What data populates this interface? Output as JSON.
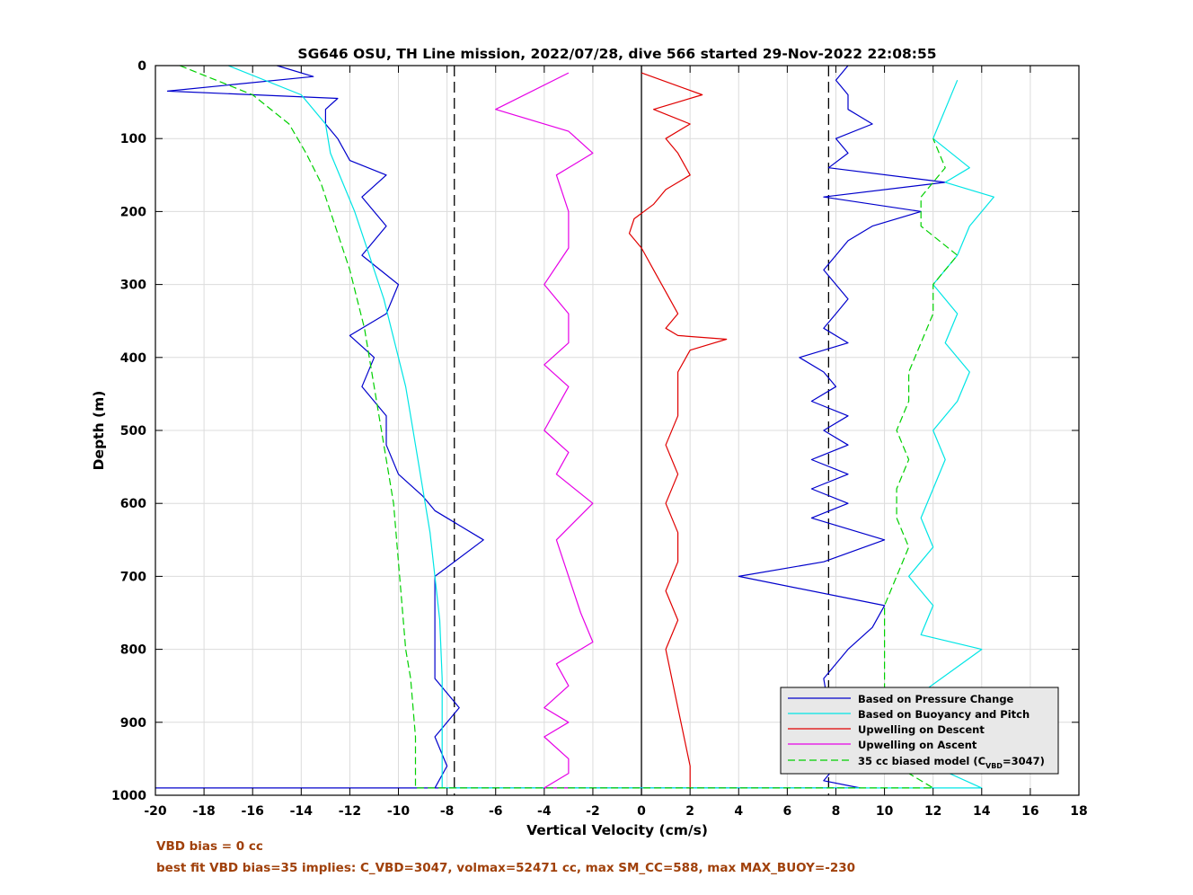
{
  "chart_data": {
    "type": "line",
    "title": "SG646 OSU, TH Line mission, 2022/07/28, dive 566 started 29-Nov-2022 22:08:55",
    "xlabel": "Vertical Velocity (cm/s)",
    "ylabel": "Depth (m)",
    "xlim": [
      -20,
      18
    ],
    "ylim": [
      0,
      1000
    ],
    "y_reversed": true,
    "grid": true,
    "legend_position": "bottom-right",
    "xticks": [
      "-20",
      "-18",
      "-16",
      "-14",
      "-12",
      "-10",
      "-8",
      "-6",
      "-4",
      "-2",
      "0",
      "2",
      "4",
      "6",
      "8",
      "10",
      "12",
      "14",
      "16",
      "18"
    ],
    "yticks": [
      "0",
      "100",
      "200",
      "300",
      "400",
      "500",
      "600",
      "700",
      "800",
      "900",
      "1000"
    ],
    "reference_lines": [
      {
        "x": -7.7,
        "style": "dashed",
        "color": "#000000"
      },
      {
        "x": 0,
        "style": "solid",
        "color": "#000000"
      },
      {
        "x": 7.7,
        "style": "dashed",
        "color": "#000000"
      }
    ],
    "series": [
      {
        "name": "Based on Pressure Change",
        "color": "#0000cc",
        "style": "solid",
        "x": [
          -15,
          -13.5,
          -19.5,
          -12.5,
          -13,
          -13,
          -12.5,
          -12,
          -10.5,
          -11.5,
          -10.5,
          -11.5,
          -10,
          -10.5,
          -12,
          -11,
          -11.5,
          -10.5,
          -10.5,
          -10,
          -9,
          -8.5,
          -6.5,
          -8.5,
          -8.5,
          -8.5,
          -7.5,
          -8.5,
          -8,
          -8.5,
          -7.5,
          -7.5,
          -7.5,
          -7.5,
          -7,
          -7.5,
          -7.7,
          -7.5,
          -7,
          -6.5,
          -6,
          -6,
          -20,
          6,
          9,
          7.5,
          8,
          7,
          7.7,
          7.5,
          8.5,
          9.5,
          10,
          4,
          7.5,
          10,
          7,
          8.5,
          7,
          8.5,
          7,
          8.5,
          7.5,
          8.5,
          7,
          8,
          7.5,
          6.5,
          8.5,
          7.5,
          8,
          8.5,
          8,
          7.5,
          8,
          8.5,
          9.5,
          11.5,
          7.5,
          12.5,
          7.7,
          8.5,
          8,
          9.5,
          8.5,
          8.5,
          8,
          8.5
        ],
        "y": [
          0,
          15,
          35,
          45,
          60,
          80,
          100,
          130,
          150,
          180,
          220,
          260,
          300,
          340,
          370,
          400,
          440,
          480,
          520,
          560,
          590,
          610,
          650,
          700,
          760,
          840,
          880,
          920,
          960,
          990,
          990,
          990,
          990,
          990,
          990,
          990,
          990,
          990,
          990,
          990,
          990,
          990,
          990,
          990,
          990,
          980,
          960,
          920,
          880,
          840,
          800,
          770,
          740,
          700,
          680,
          650,
          620,
          600,
          580,
          560,
          540,
          520,
          500,
          480,
          460,
          440,
          420,
          400,
          380,
          360,
          340,
          320,
          300,
          280,
          260,
          240,
          220,
          200,
          180,
          160,
          140,
          120,
          100,
          80,
          60,
          40,
          20,
          0
        ]
      },
      {
        "name": "Based on Buoyancy and Pitch",
        "color": "#00e5e5",
        "style": "solid",
        "x": [
          -17,
          -14,
          -13,
          -12.8,
          -12.3,
          -11.8,
          -11.4,
          -11,
          -10.6,
          -10.3,
          -10,
          -9.7,
          -9.5,
          -9.3,
          -9.1,
          -8.9,
          -8.7,
          -8.5,
          -8.3,
          -8.2,
          -8.2,
          14,
          12,
          11.5,
          11.5,
          14,
          11.5,
          12,
          11,
          12,
          11.5,
          12,
          12.5,
          12,
          13,
          13.5,
          12.5,
          13,
          12,
          13,
          13.5,
          14.5,
          12.5,
          13.5,
          12,
          12.5,
          13
        ],
        "y": [
          0,
          40,
          80,
          120,
          160,
          200,
          240,
          280,
          320,
          360,
          400,
          440,
          480,
          520,
          560,
          600,
          640,
          700,
          760,
          840,
          990,
          990,
          960,
          900,
          860,
          800,
          780,
          740,
          700,
          660,
          620,
          580,
          540,
          500,
          460,
          420,
          380,
          340,
          300,
          260,
          220,
          180,
          160,
          140,
          100,
          60,
          20
        ]
      },
      {
        "name": "Upwelling on Descent",
        "color": "#e00000",
        "style": "solid",
        "x": [
          0,
          2.5,
          0.5,
          2,
          1,
          1.5,
          2,
          1,
          0.5,
          -0.3,
          -0.5,
          0,
          0.5,
          1,
          1.5,
          1,
          1.5,
          3.5,
          2,
          1.5,
          1.5,
          1.5,
          1,
          1.5,
          1,
          1.5,
          1.5,
          1,
          1.5,
          1,
          1.5,
          2,
          2
        ],
        "y": [
          10,
          40,
          60,
          80,
          100,
          120,
          150,
          170,
          190,
          210,
          230,
          250,
          280,
          310,
          340,
          360,
          370,
          375,
          390,
          420,
          450,
          480,
          520,
          560,
          600,
          640,
          680,
          720,
          760,
          800,
          880,
          960,
          990
        ]
      },
      {
        "name": "Upwelling on Ascent",
        "color": "#e600e6",
        "style": "solid",
        "x": [
          -3,
          -6,
          -3,
          -2,
          -3.5,
          -3,
          -3,
          -4,
          -3,
          -3,
          -4,
          -3,
          -3.5,
          -4,
          -3,
          -3.5,
          -2,
          -3.5,
          -3,
          -2.5,
          -2,
          -3.5,
          -3,
          -4,
          -3,
          -4,
          -3,
          -3,
          -4,
          -3
        ],
        "y": [
          10,
          60,
          90,
          120,
          150,
          200,
          250,
          300,
          340,
          380,
          410,
          440,
          470,
          500,
          530,
          560,
          600,
          650,
          700,
          750,
          790,
          820,
          850,
          880,
          900,
          920,
          950,
          970,
          990,
          990
        ]
      },
      {
        "name": "35 cc biased model (C_VBD=3047)",
        "color": "#00d000",
        "style": "dashed",
        "x": [
          -19,
          -16,
          -14.5,
          -13.8,
          -13.2,
          -12.8,
          -12.4,
          -12,
          -11.7,
          -11.4,
          -11.2,
          -11,
          -10.8,
          -10.6,
          -10.4,
          -10.2,
          -10.1,
          -10,
          -9.9,
          -9.8,
          -9.7,
          -9.5,
          -9.4,
          -9.3,
          -9.3,
          12,
          10.5,
          10,
          10,
          10,
          10,
          10.5,
          11,
          10.5,
          10.5,
          11,
          10.5,
          11,
          11,
          11.5,
          12,
          12,
          13,
          11.5,
          11.5,
          12.5,
          12
        ],
        "y": [
          0,
          40,
          80,
          120,
          160,
          200,
          240,
          280,
          320,
          360,
          400,
          440,
          480,
          520,
          560,
          600,
          640,
          680,
          720,
          760,
          800,
          840,
          880,
          920,
          990,
          990,
          960,
          900,
          860,
          800,
          740,
          700,
          660,
          620,
          580,
          540,
          500,
          460,
          420,
          380,
          340,
          300,
          260,
          220,
          180,
          140,
          100
        ]
      }
    ],
    "legend": [
      "Based on Pressure Change",
      "Based on Buoyancy and Pitch",
      "Upwelling on Descent",
      "Upwelling on Ascent",
      "35 cc biased model (C",
      "VBD",
      "=3047)"
    ]
  },
  "notes": {
    "line1": "VBD bias = 0 cc",
    "line2": "best fit VBD bias=35 implies: C_VBD=3047, volmax=52471 cc, max SM_CC=588, max MAX_BUOY=-230"
  }
}
